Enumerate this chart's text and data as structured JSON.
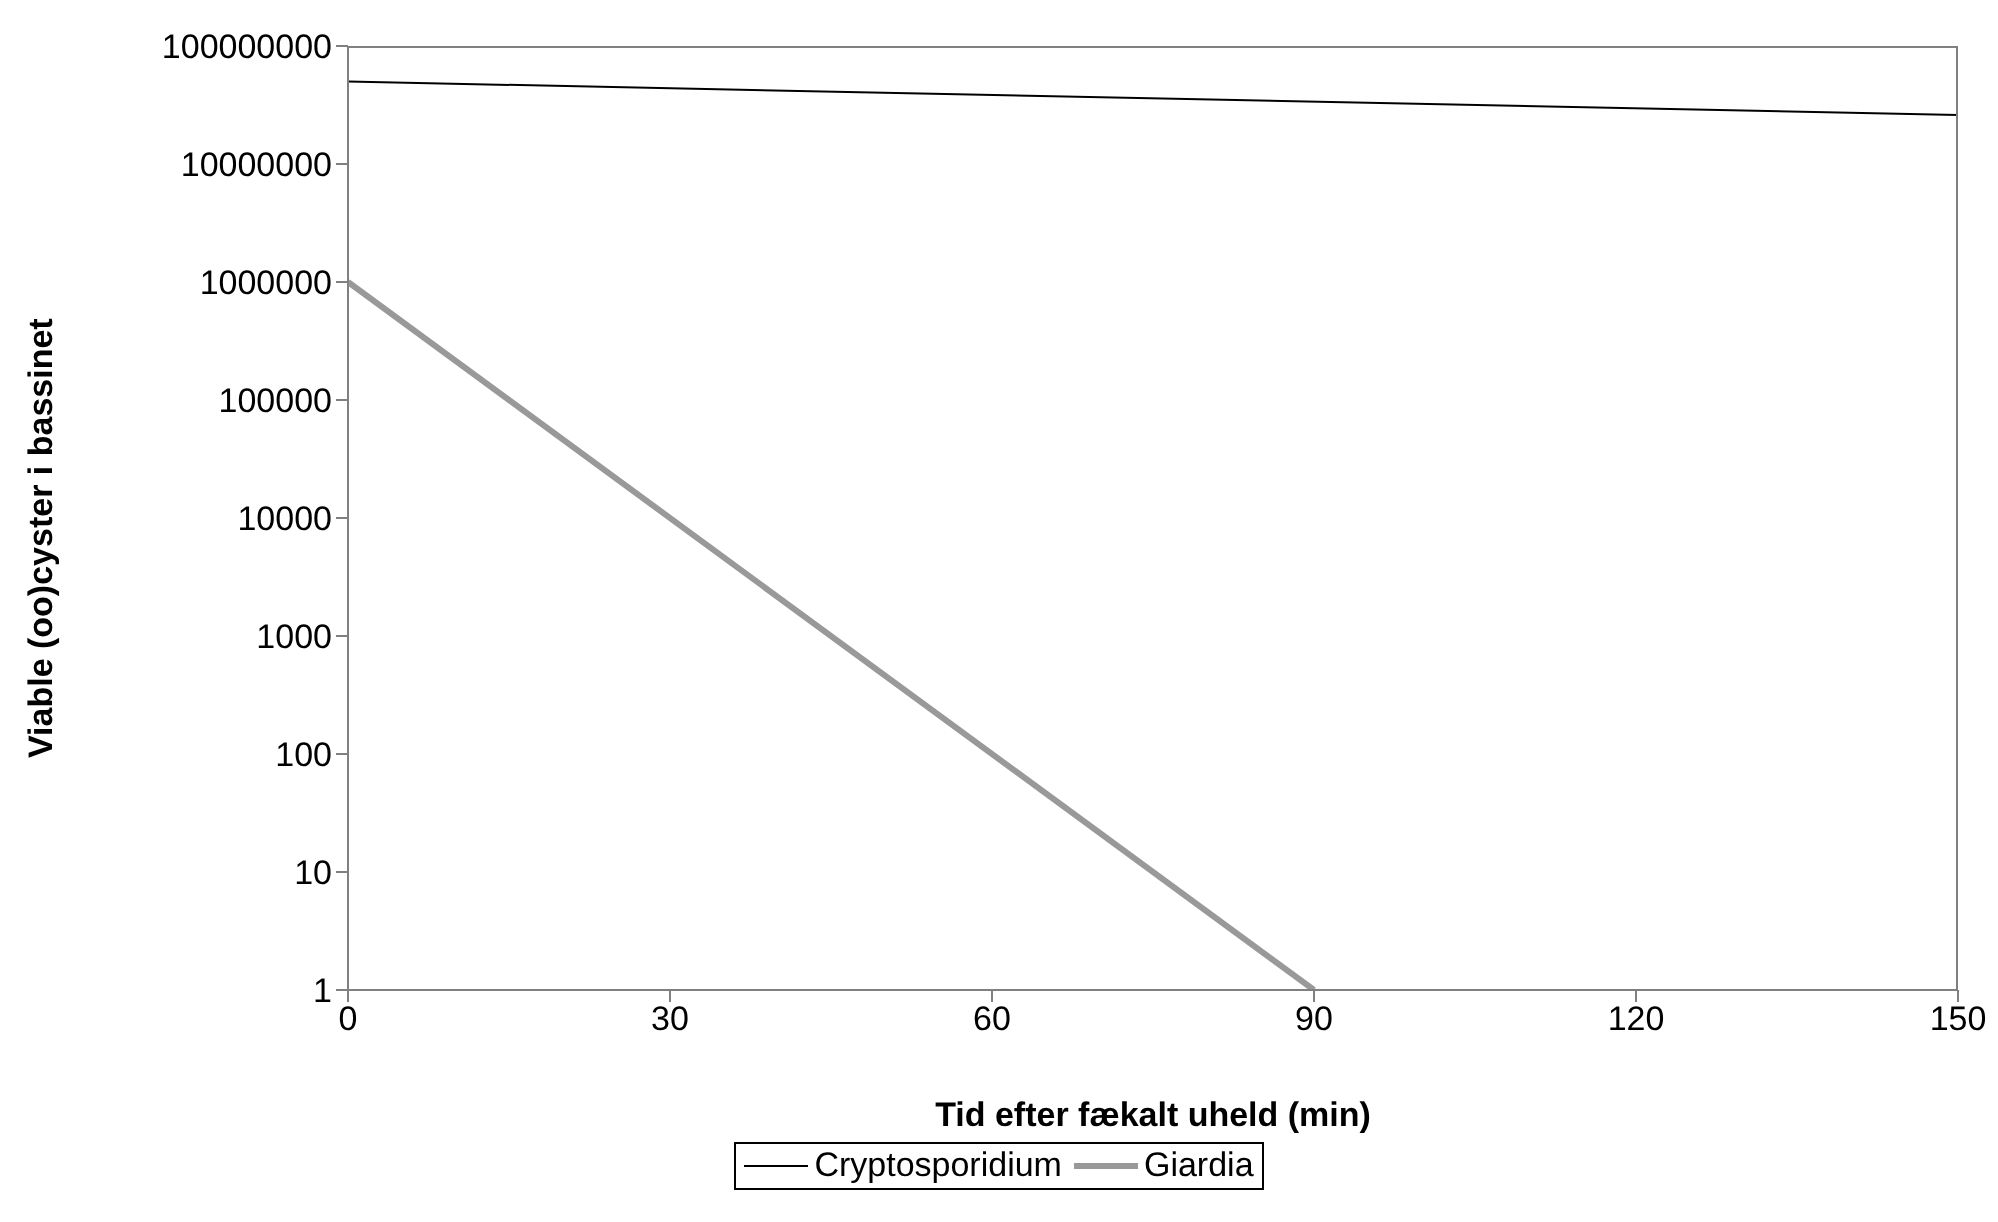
{
  "chart_data": {
    "type": "line",
    "xlabel": "Tid efter fækalt uheld (min)",
    "ylabel": "Viable (oo)cyster i bassinet",
    "series": [
      {
        "name": "Cryptosporidium",
        "color": "#000000",
        "x": [
          0,
          150
        ],
        "values": [
          50000000,
          26000000
        ]
      },
      {
        "name": "Giardia",
        "color": "#999999",
        "x": [
          0,
          90
        ],
        "values": [
          1000000,
          1
        ]
      }
    ],
    "xlim": [
      0,
      150
    ],
    "xticks": [
      0,
      30,
      60,
      90,
      120,
      150
    ],
    "ylim": [
      1,
      100000000
    ],
    "yticks": [
      1,
      10,
      100,
      1000,
      10000,
      100000,
      1000000,
      10000000,
      100000000
    ],
    "log": "y",
    "grid": false,
    "legend": "bottom",
    "marker": "none",
    "line_style": "solid"
  }
}
